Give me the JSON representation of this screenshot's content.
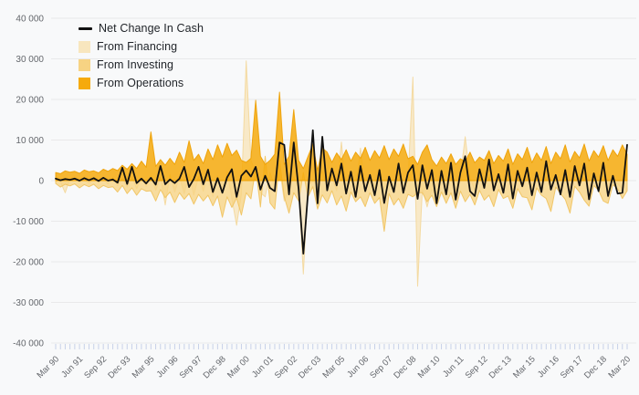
{
  "colors": {
    "background": "#f8f9fa",
    "gridline": "#e9e9ea",
    "tick_mark": "#c7d1e8",
    "axis_text": "#64676c",
    "legend_text": "#1f2328",
    "net_line": "#111111",
    "financing": "#f8e6be",
    "financing_edge": "#f3d79a",
    "investing": "#f7d383",
    "investing_edge": "#f0c25d",
    "operations": "#f6aa0c",
    "operations_edge": "#ed9f00"
  },
  "chart": {
    "legend": [
      {
        "label": "Net Change In Cash",
        "type": "line",
        "color": "#111111"
      },
      {
        "label": "From Financing",
        "type": "area",
        "color": "#f8e6be"
      },
      {
        "label": "From Investing",
        "type": "area",
        "color": "#f7d383"
      },
      {
        "label": "From Operations",
        "type": "area",
        "color": "#f6aa0c"
      }
    ],
    "y_ticks": [
      {
        "label": "40 000",
        "value": 40000
      },
      {
        "label": "30 000",
        "value": 30000
      },
      {
        "label": "20 000",
        "value": 20000
      },
      {
        "label": "10 000",
        "value": 10000
      },
      {
        "label": "0",
        "value": 0
      },
      {
        "label": "-10 000",
        "value": -10000
      },
      {
        "label": "-20 000",
        "value": -20000
      },
      {
        "label": "-30 000",
        "value": -30000
      },
      {
        "label": "-40 000",
        "value": -40000
      }
    ],
    "x_ticks": [
      "Mar 90",
      "Jun 91",
      "Sep 92",
      "Dec 93",
      "Mar 95",
      "Jun 96",
      "Sep 97",
      "Dec 98",
      "Mar 00",
      "Jun 01",
      "Sep 02",
      "Dec 03",
      "Mar 05",
      "Jun 06",
      "Sep 07",
      "Dec 08",
      "Mar 10",
      "Jun 11",
      "Sep 12",
      "Dec 13",
      "Mar 15",
      "Jun 16",
      "Sep 17",
      "Dec 18",
      "Mar 20"
    ],
    "x_label_every_n_quarters": 5
  },
  "chart_data": {
    "type": "area",
    "x_unit": "quarter",
    "x_start": "Mar 90",
    "x_end": "Mar 20",
    "n_points": 121,
    "categories_labeled": [
      "Mar 90",
      "Jun 91",
      "Sep 92",
      "Dec 93",
      "Mar 95",
      "Jun 96",
      "Sep 97",
      "Dec 98",
      "Mar 00",
      "Jun 01",
      "Sep 02",
      "Dec 03",
      "Mar 05",
      "Jun 06",
      "Sep 07",
      "Dec 08",
      "Mar 10",
      "Jun 11",
      "Sep 12",
      "Dec 13",
      "Mar 15",
      "Jun 16",
      "Sep 17",
      "Dec 18",
      "Mar 20"
    ],
    "ylim": [
      -40000,
      40000
    ],
    "grid": "horizontal-only",
    "legend_position": "top-left-inside",
    "series": [
      {
        "name": "From Financing",
        "type": "area",
        "color": "#f8e6be",
        "values": [
          400,
          -300,
          -3000,
          500,
          300,
          -400,
          200,
          -600,
          300,
          -500,
          400,
          -800,
          800,
          -1200,
          600,
          -1600,
          1000,
          -2000,
          700,
          -1400,
          1200,
          -2400,
          800,
          -6000,
          1500,
          -2800,
          900,
          -3200,
          1800,
          -3600,
          1000,
          -2600,
          2000,
          -4000,
          1200,
          -3000,
          2200,
          -4400,
          -11000,
          -3400,
          29500,
          5000,
          2000,
          -3000,
          -4000,
          2000,
          -1500,
          3000,
          -5000,
          -2000,
          1000,
          -2000,
          -23000,
          -1000,
          -200,
          -1000,
          2500,
          -1500,
          800,
          -2500,
          9500,
          -3000,
          600,
          -2000,
          8000,
          -2500,
          400,
          -1800,
          3000,
          -2000,
          200,
          -2200,
          2600,
          -2400,
          100,
          25500,
          -26000,
          -2000,
          -6500,
          -2000,
          -4500,
          1500,
          -1800,
          900,
          -2600,
          1200,
          10800,
          700,
          -2400,
          1000,
          -1600,
          800,
          -2000,
          600,
          -1500,
          900,
          -2200,
          500,
          -1800,
          700,
          -2400,
          600,
          -1400,
          800,
          -2000,
          400,
          -1600,
          900,
          -2600,
          300,
          -1200,
          1000,
          -2800,
          200,
          -1000,
          1100,
          -3000,
          100,
          -800,
          -2000,
          5000
        ]
      },
      {
        "name": "From Investing",
        "type": "area",
        "color": "#f7d383",
        "values": [
          -700,
          -1600,
          -900,
          -1300,
          -800,
          -1800,
          -1000,
          -1500,
          -900,
          -2000,
          -1200,
          -1700,
          -1500,
          -2800,
          -1200,
          -3200,
          -1800,
          -3600,
          -2000,
          -2600,
          -2500,
          -5000,
          -2200,
          -4200,
          -2800,
          -5400,
          -3000,
          -4600,
          -3200,
          -5800,
          -3400,
          -5000,
          -3600,
          -6200,
          -3800,
          -9000,
          -4000,
          -6600,
          -4200,
          -8500,
          -3000,
          -4500,
          3000,
          -6500,
          6000,
          -5500,
          -7000,
          5000,
          -4000,
          -8000,
          -3000,
          -5000,
          2000,
          -4000,
          -1500,
          -7000,
          -3500,
          -5500,
          -2500,
          -6000,
          -3800,
          -7500,
          -2800,
          -5200,
          -4000,
          -6400,
          -3000,
          -5600,
          -4200,
          -12500,
          -3200,
          -6000,
          -4400,
          -6800,
          -3400,
          -4000,
          -3000,
          -3000,
          -5200,
          -3600,
          -6400,
          -2800,
          -5600,
          -3000,
          -6800,
          -2600,
          -5200,
          -3400,
          -6000,
          -2400,
          -4800,
          -3600,
          -6400,
          -2200,
          -4400,
          -3800,
          -6800,
          -2000,
          -4000,
          -4200,
          -7200,
          -1800,
          -3600,
          -4400,
          -7600,
          -1600,
          -3200,
          -4600,
          -8000,
          -1400,
          -2800,
          -4800,
          -6300,
          -1200,
          -2400,
          -5000,
          -5600,
          -1000,
          -2000,
          -4400,
          -2500
        ]
      },
      {
        "name": "From Operations",
        "type": "area",
        "color": "#f6aa0c",
        "values": [
          2000,
          1700,
          2400,
          2100,
          2300,
          1800,
          2600,
          2200,
          2400,
          1900,
          2800,
          2300,
          3000,
          2500,
          3800,
          2800,
          4200,
          3000,
          4800,
          3300,
          12000,
          3500,
          5200,
          3800,
          5500,
          4000,
          7000,
          4500,
          9800,
          5000,
          6500,
          4200,
          7800,
          5200,
          8800,
          5800,
          9200,
          6200,
          7500,
          5000,
          4500,
          5500,
          19800,
          6000,
          4000,
          5000,
          6500,
          21800,
          4000,
          6000,
          17500,
          5000,
          3000,
          6000,
          9000,
          2500,
          8000,
          7000,
          4500,
          6800,
          5200,
          7600,
          4800,
          7000,
          5500,
          8200,
          5000,
          7400,
          5600,
          8600,
          5200,
          7800,
          6000,
          9000,
          5400,
          6000,
          4000,
          7000,
          8800,
          5200,
          3600,
          5800,
          4200,
          6600,
          4000,
          5400,
          4600,
          7000,
          4400,
          5800,
          5000,
          7400,
          4200,
          6200,
          4800,
          7800,
          4000,
          6600,
          5200,
          8200,
          4400,
          6800,
          5000,
          8400,
          4200,
          7000,
          5400,
          8800,
          4600,
          7200,
          5600,
          9000,
          4800,
          7400,
          5800,
          8600,
          5000,
          7600,
          6000,
          8800,
          6500
        ]
      },
      {
        "name": "Net Change In Cash",
        "type": "line",
        "color": "#111111",
        "values": [
          500,
          100,
          400,
          200,
          500,
          0,
          600,
          100,
          600,
          -100,
          700,
          0,
          300,
          -500,
          3200,
          -800,
          3400,
          -600,
          500,
          -700,
          700,
          -1000,
          3600,
          -900,
          300,
          -600,
          500,
          3400,
          -1600,
          400,
          3400,
          -900,
          2700,
          -2800,
          600,
          -3000,
          800,
          2800,
          -4000,
          1200,
          2500,
          1000,
          3400,
          -2200,
          1200,
          -1800,
          -2600,
          9400,
          8800,
          -3400,
          9400,
          -2000,
          -18000,
          -2800,
          12400,
          -5600,
          10800,
          -2400,
          3000,
          -1200,
          4200,
          -3200,
          2200,
          -4000,
          3600,
          -2600,
          1400,
          -3600,
          2600,
          -5500,
          1000,
          -2800,
          4200,
          -3000,
          2000,
          3800,
          -4500,
          3800,
          -2000,
          2600,
          -5600,
          2400,
          -3400,
          4400,
          -4700,
          2000,
          6000,
          -2600,
          -3800,
          2800,
          -1800,
          5200,
          -2400,
          1600,
          -3000,
          4000,
          -4400,
          2400,
          -1400,
          3200,
          -3600,
          2000,
          -2800,
          4800,
          -2200,
          1400,
          -3400,
          2600,
          -4000,
          3600,
          -1200,
          4200,
          -4600,
          1800,
          -2600,
          4400,
          -3800,
          1200,
          -3200,
          -3000,
          8800
        ]
      }
    ]
  }
}
